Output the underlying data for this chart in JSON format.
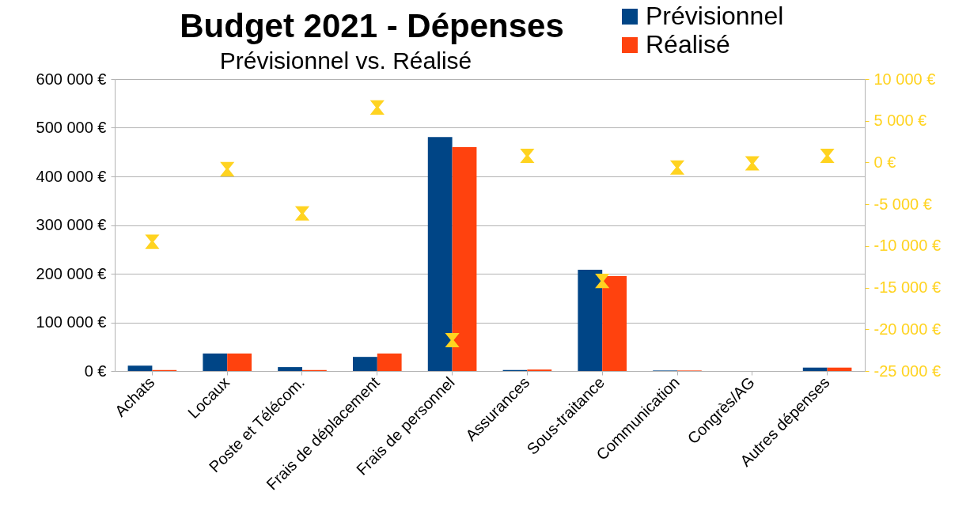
{
  "chart_data": {
    "type": "bar",
    "title": "Budget 2021 - Dépenses",
    "subtitle": "Prévisionnel vs. Réalisé",
    "categories": [
      "Achats",
      "Locaux",
      "Poste et Télécom.",
      "Frais de déplacement",
      "Frais de personnel",
      "Assurances",
      "Sous-traitance",
      "Communication",
      "Congrès/AG",
      "Autres dépenses"
    ],
    "series": [
      {
        "name": "Prévisionnel",
        "color": "#004586",
        "values": [
          11000,
          36000,
          8000,
          29000,
          481000,
          2000,
          208000,
          1000,
          0,
          7000
        ]
      },
      {
        "name": "Réalisé",
        "color": "#ff420e",
        "values": [
          2000,
          36000,
          2000,
          36000,
          460000,
          3000,
          195000,
          1000,
          0,
          7000
        ]
      },
      {
        "type": "scatter",
        "axis": "y2",
        "color": "#ffd320",
        "values": [
          -9500,
          -800,
          -6100,
          6600,
          -21300,
          800,
          -14200,
          -600,
          -100,
          800
        ]
      }
    ],
    "ylim": [
      0,
      600000
    ],
    "yticks": [
      {
        "value": 0,
        "label": "0 €"
      },
      {
        "value": 100000,
        "label": "100 000 €"
      },
      {
        "value": 200000,
        "label": "200 000 €"
      },
      {
        "value": 300000,
        "label": "300 000 €"
      },
      {
        "value": 400000,
        "label": "400 000 €"
      },
      {
        "value": 500000,
        "label": "500 000 €"
      },
      {
        "value": 600000,
        "label": "600 000 €"
      }
    ],
    "y2lim": [
      -25000,
      10000
    ],
    "y2ticks": [
      {
        "value": -25000,
        "label": "-25 000 €"
      },
      {
        "value": -20000,
        "label": "-20 000 €"
      },
      {
        "value": -15000,
        "label": "-15 000 €"
      },
      {
        "value": -10000,
        "label": "-10 000 €"
      },
      {
        "value": -5000,
        "label": "-5 000 €"
      },
      {
        "value": 0,
        "label": "0 €"
      },
      {
        "value": 5000,
        "label": "5 000 €"
      },
      {
        "value": 10000,
        "label": "10 000 €"
      }
    ],
    "grid": "y",
    "legend": "top right"
  }
}
